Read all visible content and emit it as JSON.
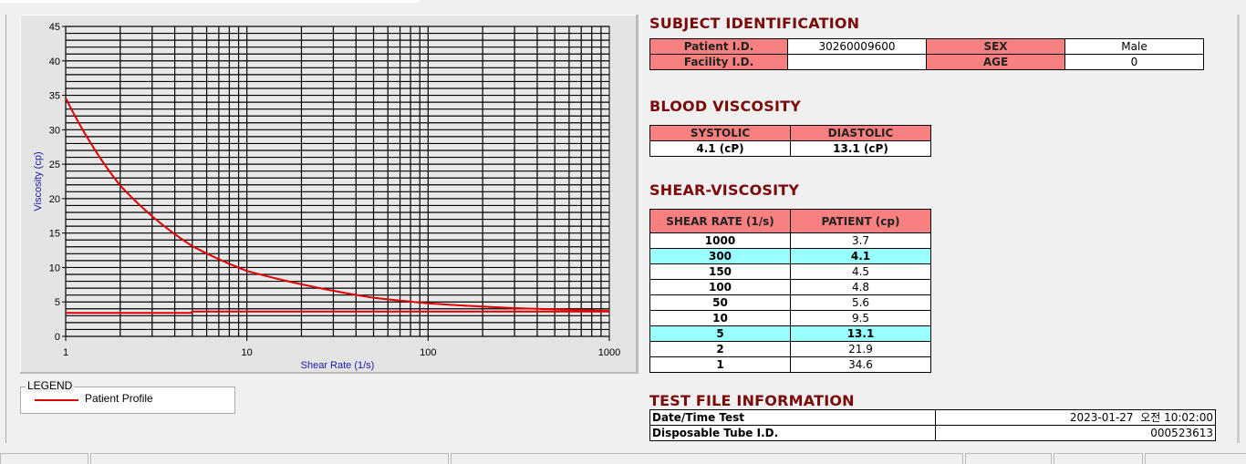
{
  "chart_data": {
    "type": "line",
    "xlabel": "Shear Rate (1/s)",
    "ylabel": "Viscosity (cp)",
    "xscale": "log",
    "xlim": [
      1,
      1000
    ],
    "ylim": [
      0,
      45
    ],
    "xticks": [
      "1",
      "10",
      "100",
      "1000"
    ],
    "yticks": [
      "0",
      "5",
      "10",
      "15",
      "20",
      "25",
      "30",
      "35",
      "40",
      "45"
    ],
    "grid": true,
    "legend_position": "bottom-left",
    "series": [
      {
        "name": "Patient Profile",
        "color": "#dd0000",
        "x": [
          1,
          2,
          5,
          10,
          50,
          100,
          150,
          300,
          1000
        ],
        "y": [
          34.6,
          21.9,
          13.1,
          9.5,
          5.6,
          4.8,
          4.5,
          4.1,
          3.7
        ]
      },
      {
        "color": "#dd0000",
        "x": [
          1,
          4.9,
          5,
          1000
        ],
        "y": [
          3.4,
          3.4,
          3.6,
          3.6
        ]
      }
    ]
  },
  "legend": {
    "title": "LEGEND",
    "items": [
      "Patient Profile"
    ]
  },
  "subject": {
    "title": "SUBJECT IDENTIFICATION",
    "patient_id_label": "Patient I.D.",
    "patient_id": "30260009600",
    "sex_label": "SEX",
    "sex": "Male",
    "facility_id_label": "Facility I.D.",
    "facility_id": "",
    "age_label": "AGE",
    "age": "0"
  },
  "blood": {
    "title": "BLOOD VISCOSITY",
    "systolic_label": "SYSTOLIC",
    "diastolic_label": "DIASTOLIC",
    "systolic": "4.1 (cP)",
    "diastolic": "13.1 (cP)"
  },
  "shear": {
    "title": "SHEAR-VISCOSITY",
    "col1": "SHEAR RATE (1/s)",
    "col2": "PATIENT (cp)",
    "highlight_color": "#99ffff",
    "rows": [
      [
        "1000",
        "3.7",
        false
      ],
      [
        "300",
        "4.1",
        true
      ],
      [
        "150",
        "4.5",
        false
      ],
      [
        "100",
        "4.8",
        false
      ],
      [
        "50",
        "5.6",
        false
      ],
      [
        "10",
        "9.5",
        false
      ],
      [
        "5",
        "13.1",
        true
      ],
      [
        "2",
        "21.9",
        false
      ],
      [
        "1",
        "34.6",
        false
      ]
    ]
  },
  "testfile": {
    "title": "TEST FILE INFORMATION",
    "date_label": "Date/Time Test",
    "date": "2023-01-27  오전 10:02:00",
    "tube_label": "Disposable Tube I.D.",
    "tube": "000523613"
  }
}
